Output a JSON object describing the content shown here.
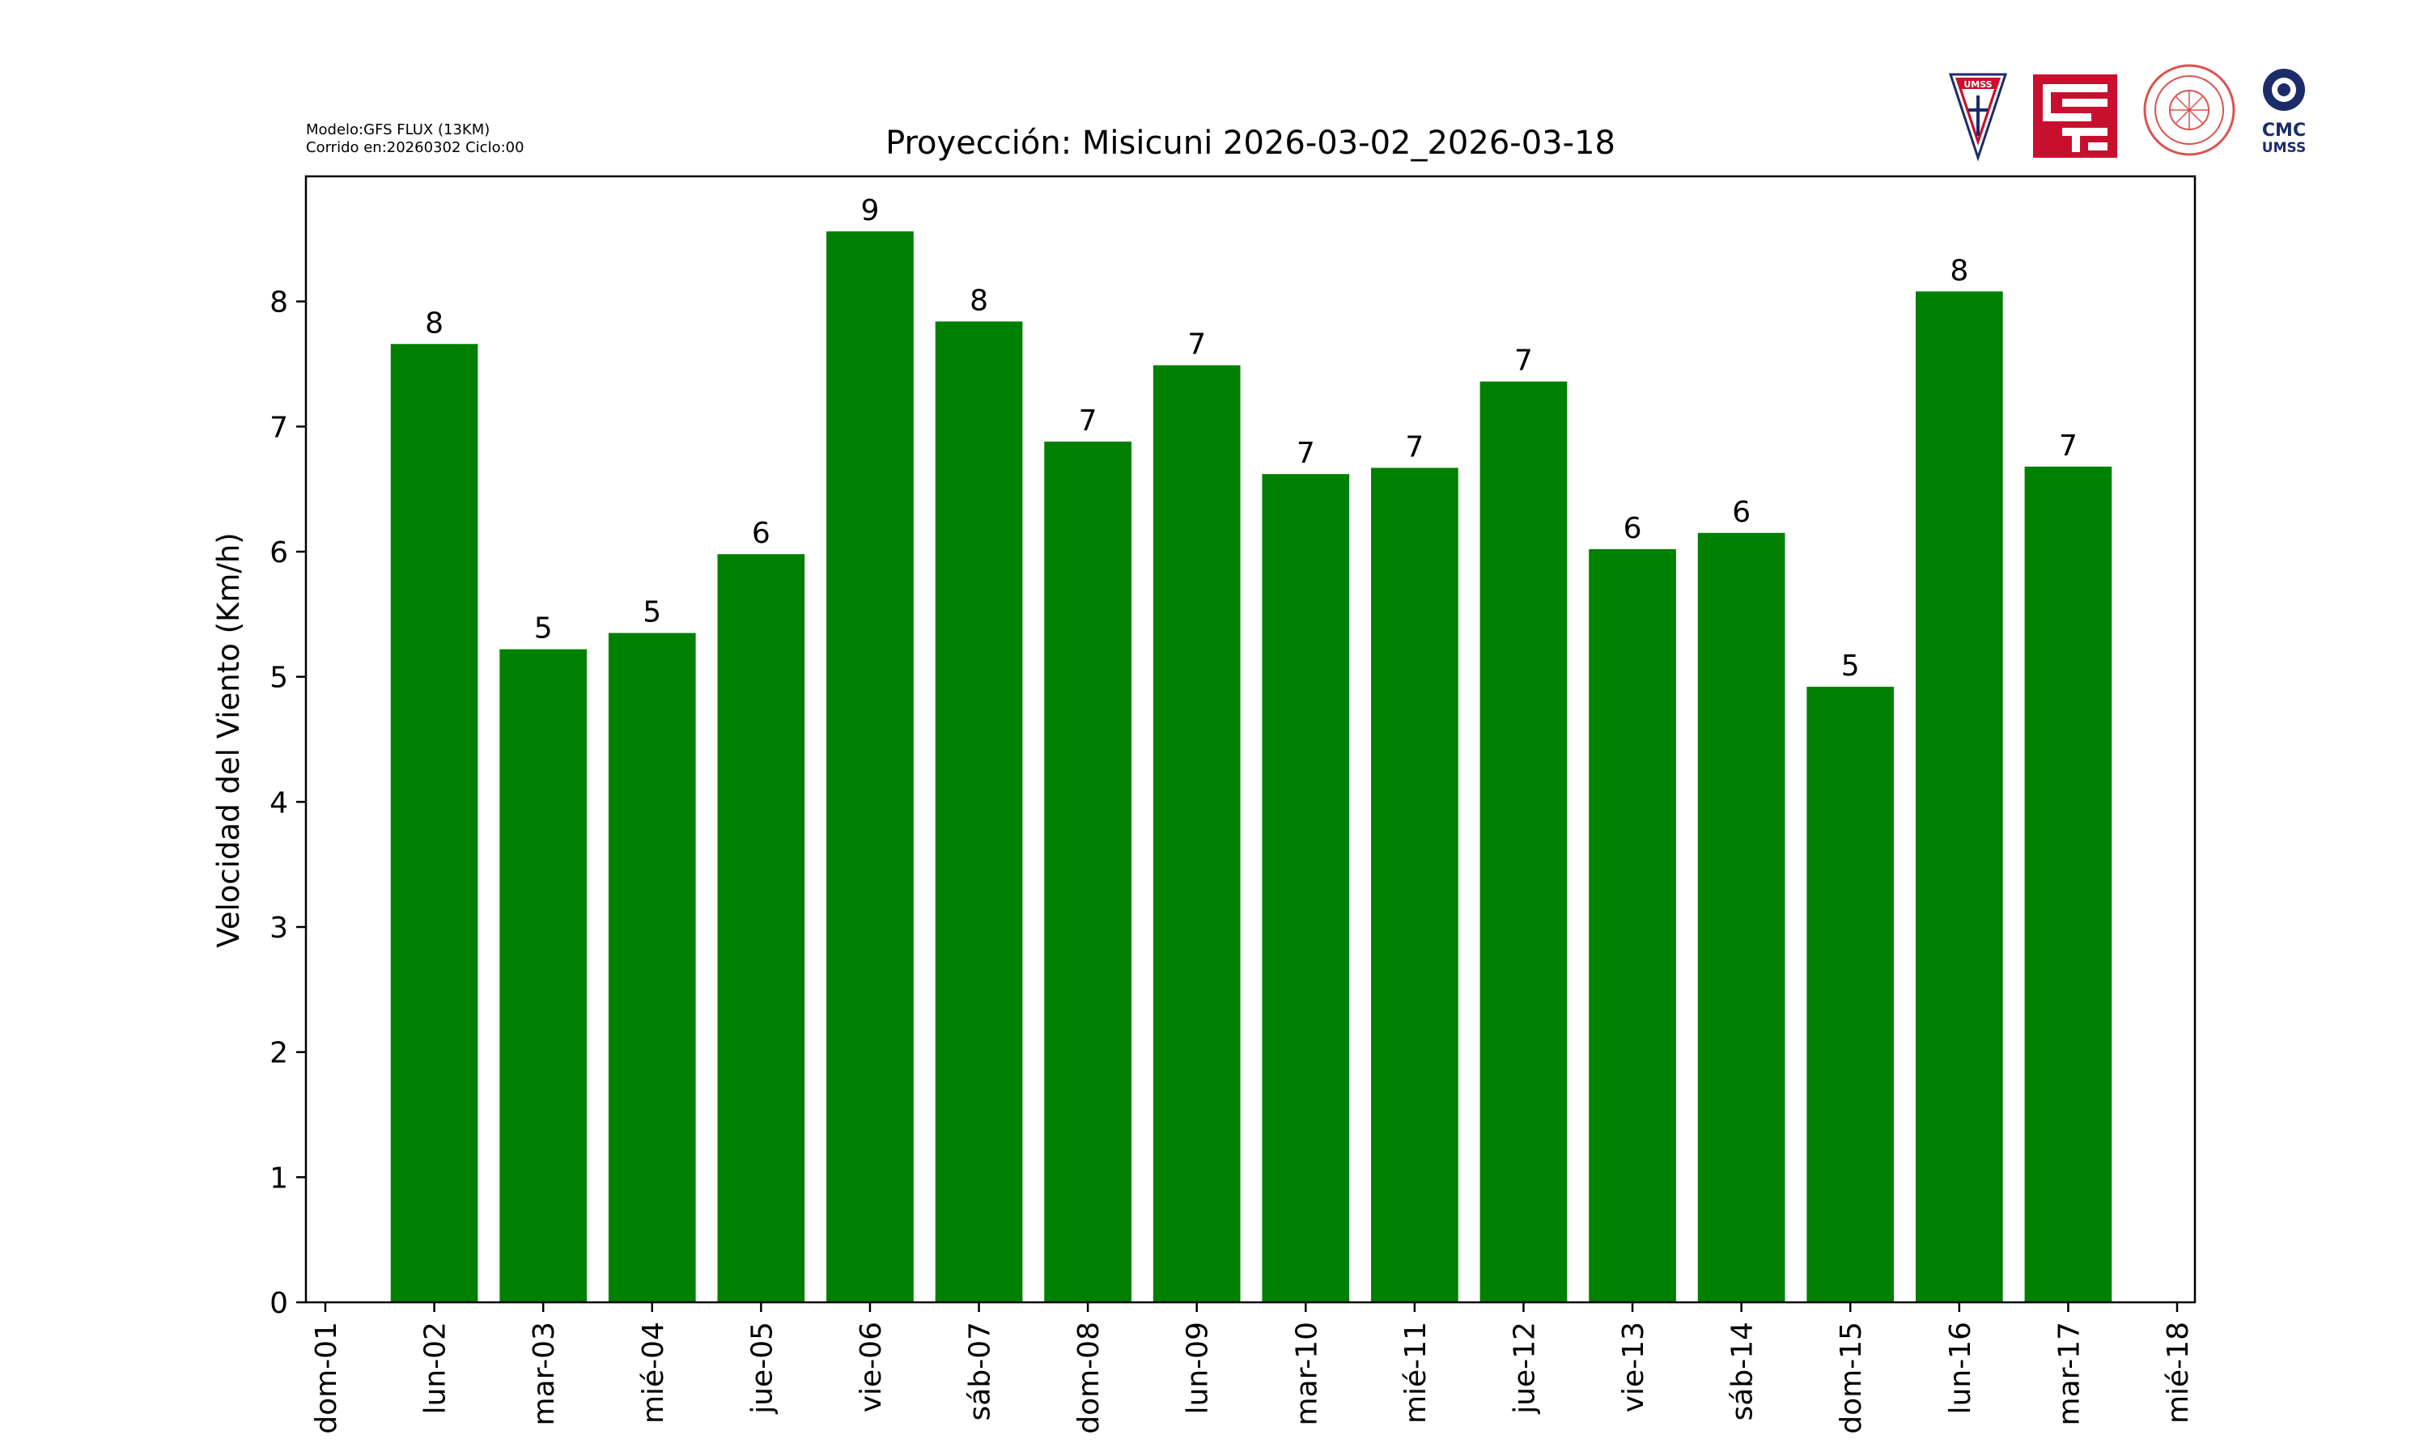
{
  "header": {
    "model_line": "Modelo:GFS FLUX (13KM)",
    "run_line": "Corrido en:20260302 Ciclo:00"
  },
  "logos": {
    "umss_label": "UMSS",
    "cmc_label": "CMC",
    "cmc_sub_label": "UMSS"
  },
  "chart_data": {
    "type": "bar",
    "title": "Proyección: Misicuni  2026-03-02_2026-03-18",
    "xlabel": "",
    "ylabel": "Velocidad del Viento (Km/h)",
    "ylim": [
      0,
      9
    ],
    "x_ticks": [
      "dom-01",
      "lun-02",
      "mar-03",
      "mié-04",
      "jue-05",
      "vie-06",
      "sáb-07",
      "dom-08",
      "lun-09",
      "mar-10",
      "mié-11",
      "jue-12",
      "vie-13",
      "sáb-14",
      "dom-15",
      "lun-16",
      "mar-17",
      "mié-18"
    ],
    "y_ticks": [
      "0",
      "1",
      "2",
      "3",
      "4",
      "5",
      "6",
      "7",
      "8"
    ],
    "categories": [
      "lun-02",
      "mar-03",
      "mié-04",
      "jue-05",
      "vie-06",
      "sáb-07",
      "dom-08",
      "lun-09",
      "mar-10",
      "mié-11",
      "jue-12",
      "vie-13",
      "sáb-14",
      "dom-15",
      "lun-16",
      "mar-17"
    ],
    "values": [
      7.66,
      5.22,
      5.35,
      5.98,
      8.56,
      7.84,
      6.88,
      7.49,
      6.62,
      6.67,
      7.36,
      6.02,
      6.15,
      4.92,
      8.08,
      6.68
    ],
    "data_labels": [
      "8",
      "5",
      "5",
      "6",
      "9",
      "8",
      "7",
      "7",
      "7",
      "7",
      "7",
      "6",
      "6",
      "5",
      "8",
      "7"
    ],
    "bar_color": "#008000",
    "grid": false,
    "legend": "none"
  }
}
